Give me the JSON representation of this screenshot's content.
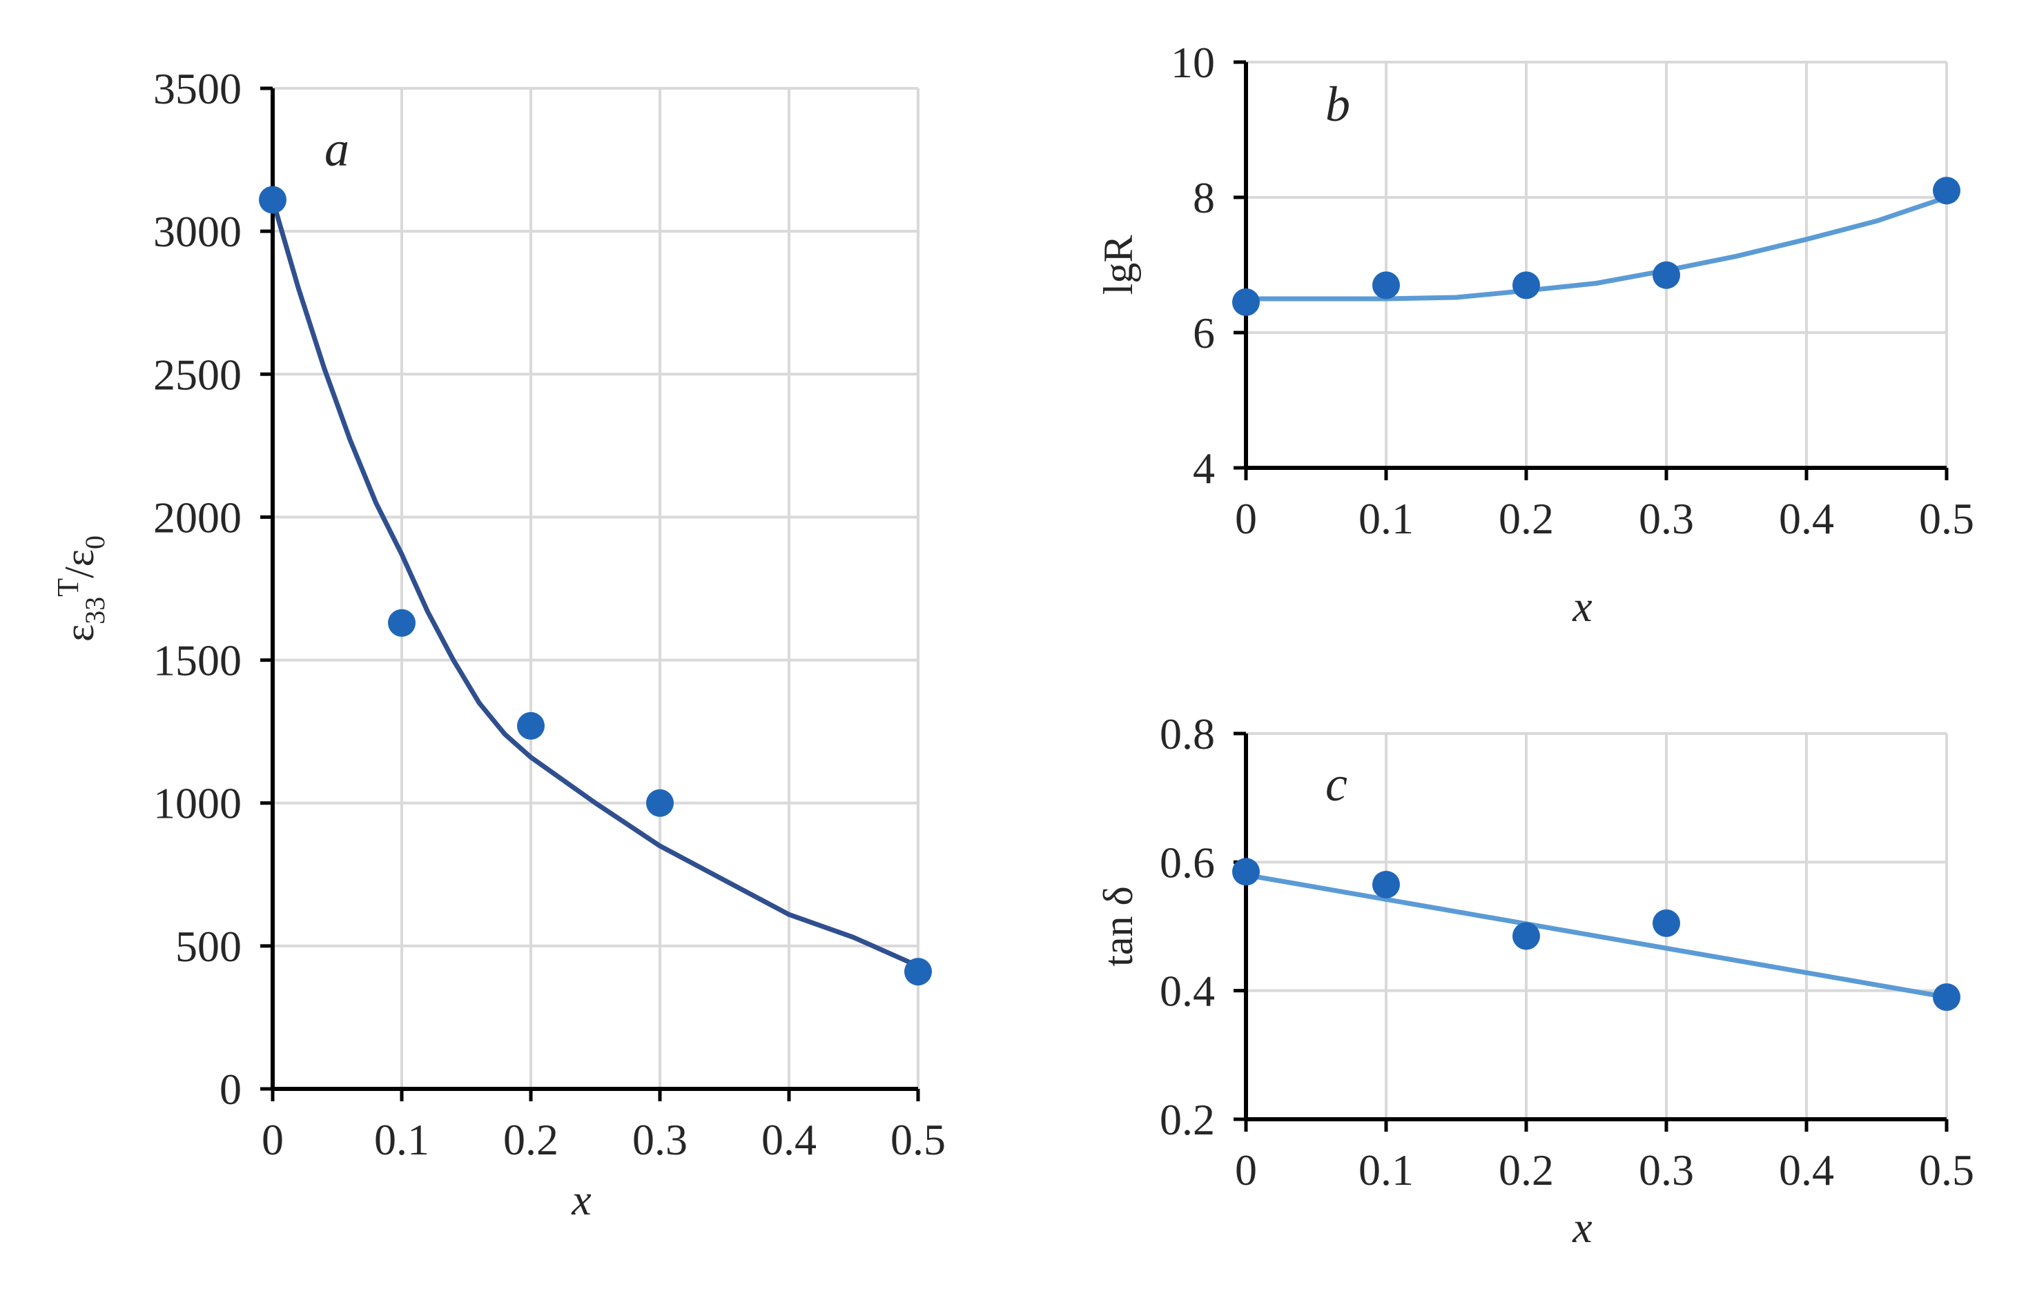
{
  "chart_data": [
    {
      "type": "scatter",
      "panel": "a",
      "xlabel": "x",
      "ylabel": "ε33T/ε0",
      "ylabel_main": "ε",
      "ylabel_sub": "33",
      "ylabel_sup": "T",
      "ylabel_tail": "/ε",
      "ylabel_tail_sub": "0",
      "xlim": [
        0,
        0.5
      ],
      "ylim": [
        0,
        3500
      ],
      "xticks": [
        "0",
        "0.1",
        "0.2",
        "0.3",
        "0.4",
        "0.5"
      ],
      "yticks": [
        "0",
        "500",
        "1000",
        "1500",
        "2000",
        "2500",
        "3000",
        "3500"
      ],
      "grid": true,
      "marker_color": "#1f66b8",
      "line_color": "#2f4f8f",
      "points": {
        "x": [
          0,
          0.1,
          0.2,
          0.3,
          0.5
        ],
        "y": [
          3110,
          1630,
          1270,
          1000,
          410
        ]
      },
      "fit": {
        "x": [
          0,
          0.02,
          0.04,
          0.06,
          0.08,
          0.1,
          0.12,
          0.14,
          0.16,
          0.18,
          0.2,
          0.25,
          0.3,
          0.35,
          0.4,
          0.45,
          0.5
        ],
        "y": [
          3110,
          2800,
          2520,
          2270,
          2050,
          1870,
          1670,
          1500,
          1350,
          1240,
          1160,
          1000,
          850,
          730,
          610,
          530,
          430
        ]
      }
    },
    {
      "type": "scatter",
      "panel": "b",
      "xlabel": "x",
      "ylabel": "lgR",
      "xlim": [
        0,
        0.5
      ],
      "ylim": [
        4,
        10
      ],
      "xticks": [
        "0",
        "0.1",
        "0.2",
        "0.3",
        "0.4",
        "0.5"
      ],
      "yticks": [
        "4",
        "6",
        "8",
        "10"
      ],
      "grid": true,
      "marker_color": "#1f66b8",
      "line_color": "#5b9bd5",
      "points": {
        "x": [
          0,
          0.1,
          0.2,
          0.3,
          0.5
        ],
        "y": [
          6.45,
          6.7,
          6.7,
          6.85,
          8.1
        ]
      },
      "fit": {
        "x": [
          0,
          0.05,
          0.1,
          0.15,
          0.2,
          0.25,
          0.3,
          0.35,
          0.4,
          0.45,
          0.5
        ],
        "y": [
          6.5,
          6.5,
          6.5,
          6.52,
          6.62,
          6.73,
          6.92,
          7.13,
          7.38,
          7.65,
          8.0
        ]
      }
    },
    {
      "type": "scatter",
      "panel": "c",
      "xlabel": "x",
      "ylabel": "tan δ",
      "xlim": [
        0,
        0.5
      ],
      "ylim": [
        0.2,
        0.8
      ],
      "xticks": [
        "0",
        "0.1",
        "0.2",
        "0.3",
        "0.4",
        "0.5"
      ],
      "yticks": [
        "0.2",
        "0.4",
        "0.6",
        "0.8"
      ],
      "grid": true,
      "marker_color": "#1f66b8",
      "line_color": "#5b9bd5",
      "points": {
        "x": [
          0,
          0.1,
          0.2,
          0.3,
          0.5
        ],
        "y": [
          0.585,
          0.565,
          0.485,
          0.505,
          0.39
        ]
      },
      "fit": {
        "x": [
          0,
          0.5
        ],
        "y": [
          0.58,
          0.39
        ]
      }
    }
  ]
}
